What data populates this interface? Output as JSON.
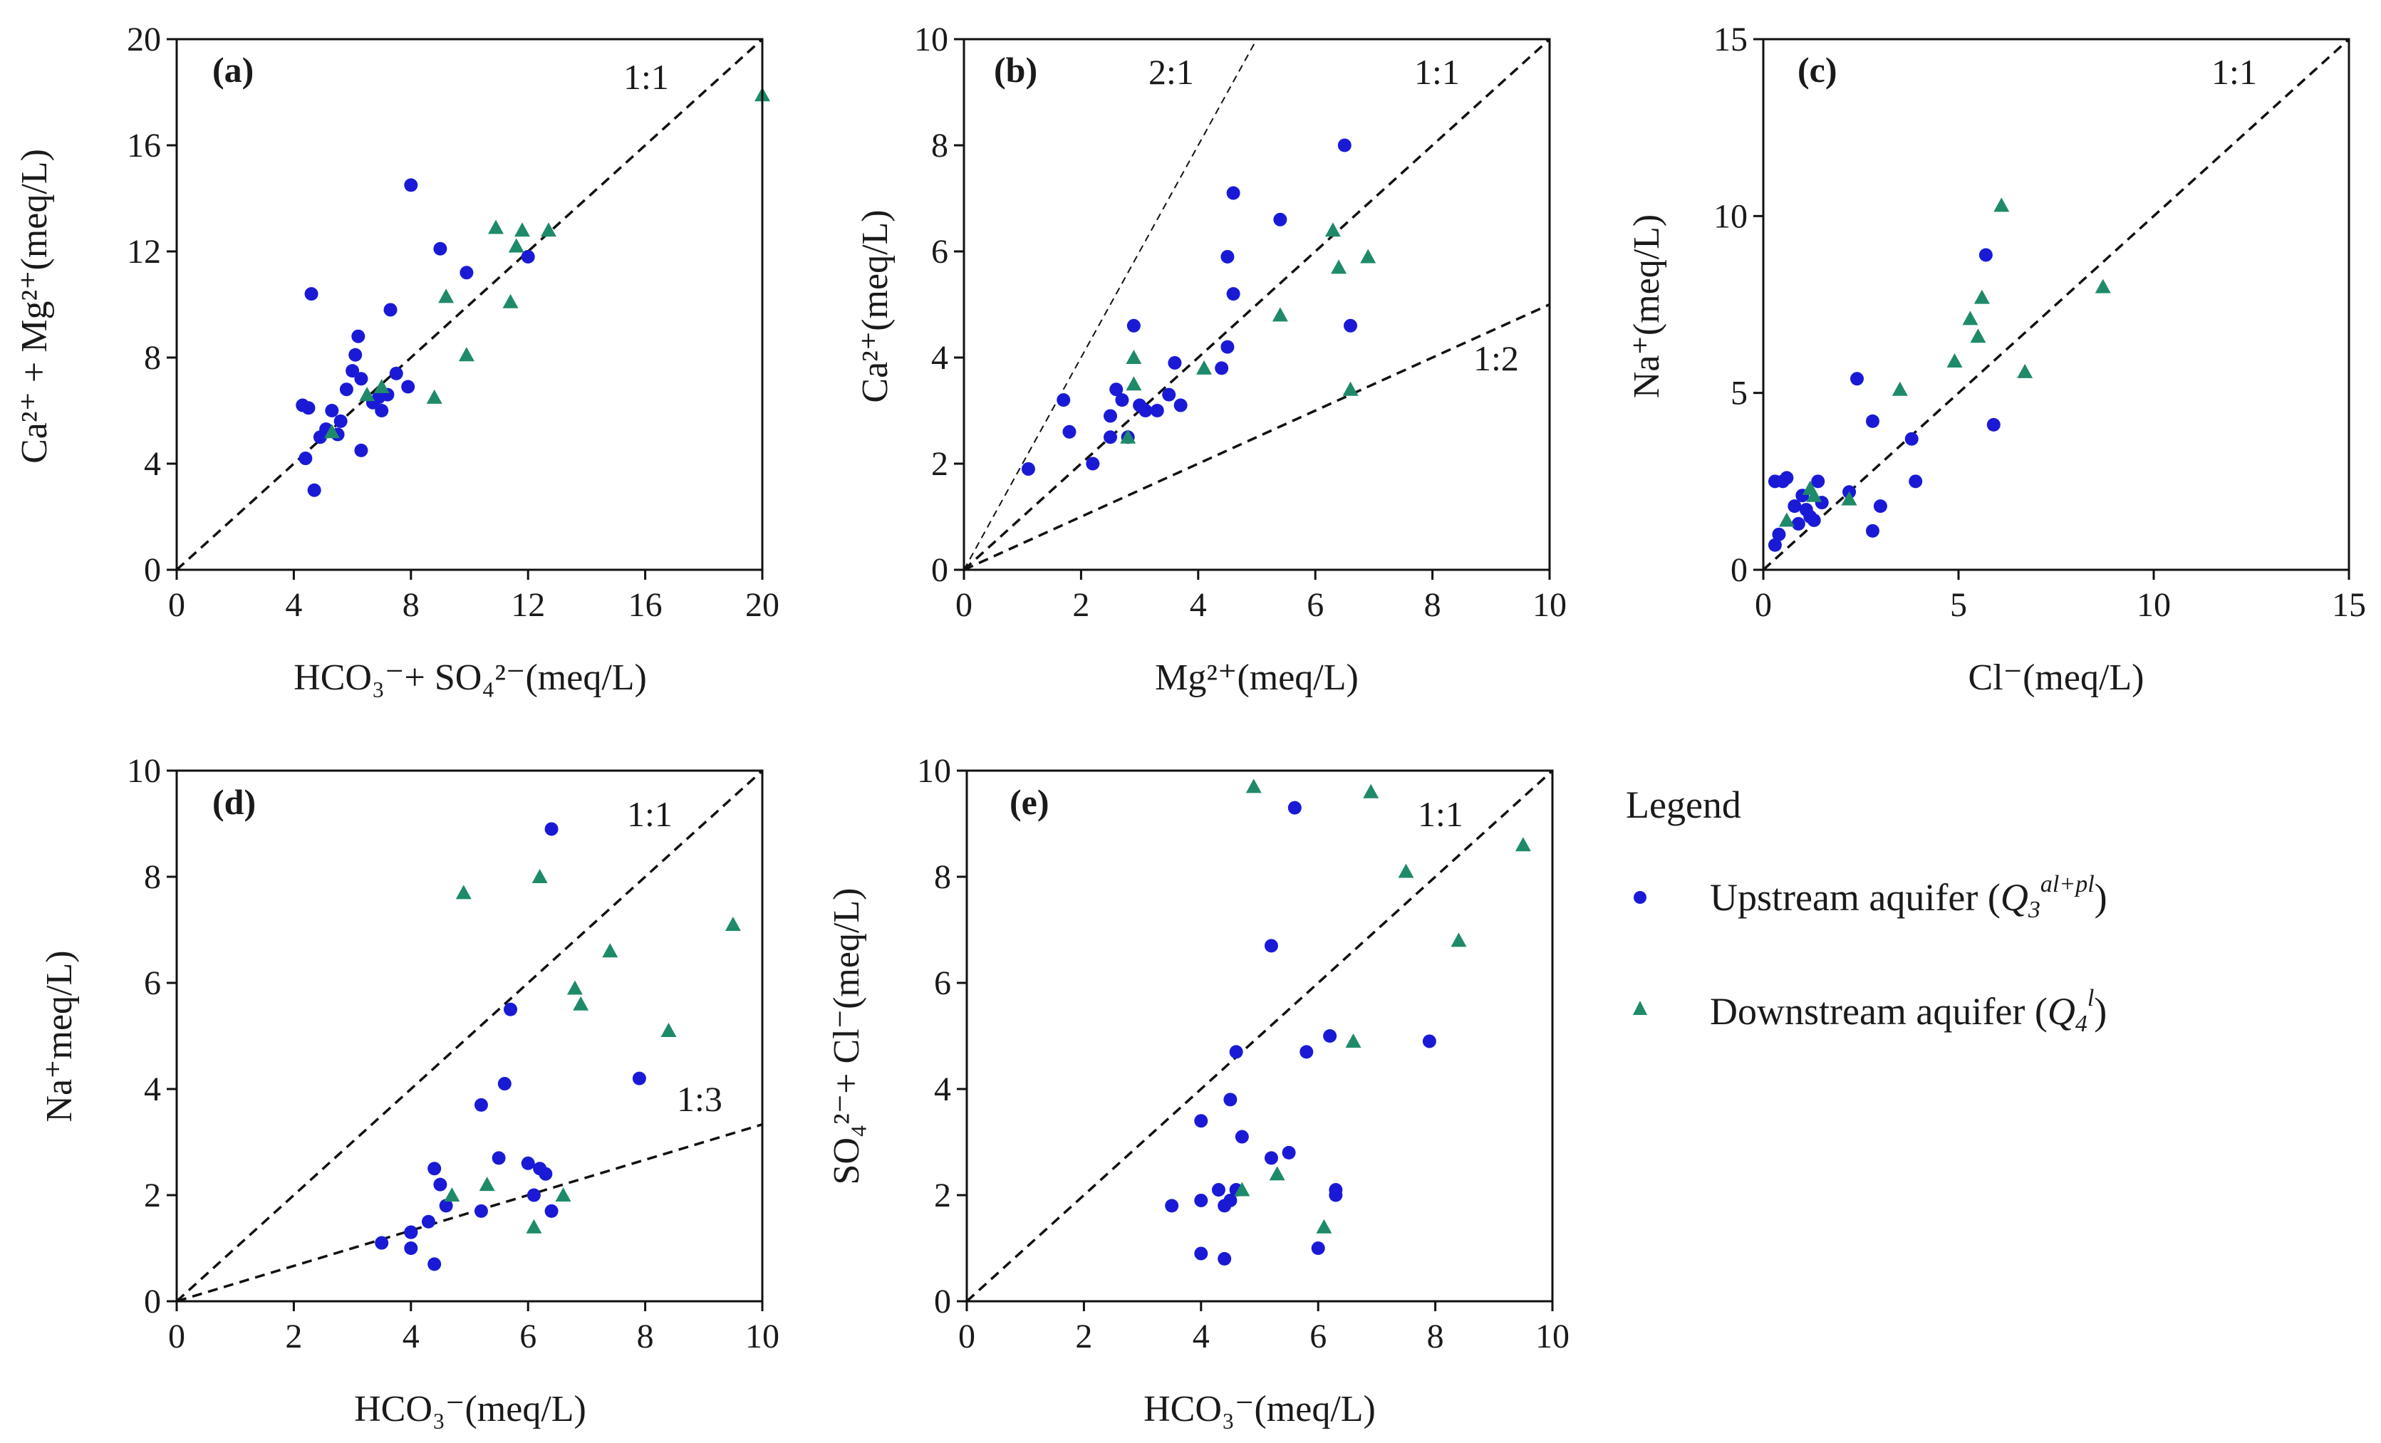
{
  "legend": {
    "title": "Legend",
    "items": [
      {
        "key": "up",
        "label_main": "Upstream aquifer (",
        "label_sym": "Q",
        "label_sub": "3",
        "label_sup": "al+pl",
        "label_end": ")",
        "color": "#1a1ad6",
        "marker": "circle"
      },
      {
        "key": "down",
        "label_main": "Downstream aquifer (",
        "label_sym": "Q",
        "label_sub": "4",
        "label_sup": "l",
        "label_end": ")",
        "color": "#1f8a6a",
        "marker": "triangle"
      }
    ]
  },
  "chart_data": [
    {
      "id": "a",
      "type": "scatter",
      "panel_label": "(a)",
      "xlabel": "HCO₃⁻+ SO₄²⁻(meq/L)",
      "ylabel": "Ca²⁺ + Mg²⁺(meq/L)",
      "xlim": [
        0,
        20
      ],
      "ylim": [
        0,
        20
      ],
      "xticks": [
        0,
        4,
        8,
        12,
        16,
        20
      ],
      "yticks": [
        0,
        4,
        8,
        12,
        16,
        20
      ],
      "ref_lines": [
        {
          "slope": 1,
          "label": "1:1",
          "style": "dashed"
        }
      ],
      "series": [
        {
          "name": "up",
          "x": [
            4.3,
            4.4,
            4.6,
            4.5,
            4.7,
            4.9,
            5.1,
            5.3,
            5.5,
            5.6,
            5.8,
            6.0,
            6.1,
            6.2,
            6.3,
            6.3,
            6.7,
            6.9,
            7.0,
            7.2,
            7.3,
            7.5,
            7.9,
            8.0,
            9.0,
            9.9,
            12.0
          ],
          "y": [
            6.2,
            4.2,
            10.4,
            6.1,
            3.0,
            5.0,
            5.3,
            6.0,
            5.1,
            5.6,
            6.8,
            7.5,
            8.1,
            8.8,
            4.5,
            7.2,
            6.3,
            6.5,
            6.0,
            6.6,
            9.8,
            7.4,
            6.9,
            14.5,
            12.1,
            11.2,
            11.8
          ]
        },
        {
          "name": "down",
          "x": [
            5.3,
            6.5,
            7.0,
            8.8,
            9.2,
            9.9,
            10.9,
            11.4,
            11.6,
            11.8,
            12.7,
            20.0
          ],
          "y": [
            5.2,
            6.6,
            6.9,
            6.5,
            10.3,
            8.1,
            12.9,
            10.1,
            12.2,
            12.8,
            12.8,
            17.9
          ]
        }
      ]
    },
    {
      "id": "b",
      "type": "scatter",
      "panel_label": "(b)",
      "xlabel": "Mg²⁺(meq/L)",
      "ylabel": "Ca²⁺(meq/L)",
      "xlim": [
        0,
        10
      ],
      "ylim": [
        0,
        10
      ],
      "xticks": [
        0,
        2,
        4,
        6,
        8,
        10
      ],
      "yticks": [
        0,
        2,
        4,
        6,
        8,
        10
      ],
      "ref_lines": [
        {
          "slope": 2,
          "label": "2:1",
          "style": "thin"
        },
        {
          "slope": 1,
          "label": "1:1",
          "style": "dashed"
        },
        {
          "slope": 0.5,
          "label": "1:2",
          "style": "dashed"
        }
      ],
      "series": [
        {
          "name": "up",
          "x": [
            1.1,
            1.7,
            1.8,
            2.2,
            2.5,
            2.5,
            2.6,
            2.7,
            2.8,
            2.9,
            3.0,
            3.1,
            3.3,
            3.5,
            3.6,
            3.7,
            4.4,
            4.5,
            4.5,
            4.6,
            4.6,
            5.4,
            6.5,
            6.6
          ],
          "y": [
            1.9,
            3.2,
            2.6,
            2.0,
            2.5,
            2.9,
            3.4,
            3.2,
            2.5,
            4.6,
            3.1,
            3.0,
            3.0,
            3.3,
            3.9,
            3.1,
            3.8,
            4.2,
            5.9,
            5.2,
            7.1,
            6.6,
            8.0,
            4.6
          ]
        },
        {
          "name": "down",
          "x": [
            2.8,
            2.9,
            2.9,
            4.1,
            5.4,
            6.3,
            6.4,
            6.6,
            6.9
          ],
          "y": [
            2.5,
            4.0,
            3.5,
            3.8,
            4.8,
            6.4,
            5.7,
            3.4,
            5.9
          ]
        }
      ]
    },
    {
      "id": "c",
      "type": "scatter",
      "panel_label": "(c)",
      "xlabel": "Cl⁻(meq/L)",
      "ylabel": "Na⁺(meq/L)",
      "xlim": [
        0,
        15
      ],
      "ylim": [
        0,
        15
      ],
      "xticks": [
        0,
        5,
        10,
        15
      ],
      "yticks": [
        0,
        5,
        10,
        15
      ],
      "ref_lines": [
        {
          "slope": 1,
          "label": "1:1",
          "style": "dashed"
        }
      ],
      "series": [
        {
          "name": "up",
          "x": [
            0.3,
            0.3,
            0.4,
            0.5,
            0.6,
            0.8,
            0.9,
            1.0,
            1.1,
            1.2,
            1.3,
            1.4,
            1.5,
            2.2,
            2.4,
            2.8,
            2.8,
            3.0,
            3.8,
            3.9,
            5.7,
            5.9
          ],
          "y": [
            2.5,
            0.7,
            1.0,
            2.5,
            2.6,
            1.8,
            1.3,
            2.1,
            1.7,
            1.5,
            1.4,
            2.5,
            1.9,
            2.2,
            5.4,
            4.2,
            1.1,
            1.8,
            3.7,
            2.5,
            8.9,
            4.1
          ]
        },
        {
          "name": "down",
          "x": [
            0.6,
            1.2,
            1.3,
            2.2,
            3.5,
            4.9,
            5.3,
            5.5,
            5.6,
            6.1,
            6.7,
            8.7
          ],
          "y": [
            1.4,
            2.3,
            2.1,
            2.0,
            5.1,
            5.9,
            7.1,
            6.6,
            7.7,
            10.3,
            5.6,
            8.0
          ]
        }
      ]
    },
    {
      "id": "d",
      "type": "scatter",
      "panel_label": "(d)",
      "xlabel": "HCO₃⁻(meq/L)",
      "ylabel": "Na⁺meq/L)",
      "xlim": [
        0,
        10
      ],
      "ylim": [
        0,
        10
      ],
      "xticks": [
        0,
        2,
        4,
        6,
        8,
        10
      ],
      "yticks": [
        0,
        2,
        4,
        6,
        8,
        10
      ],
      "ref_lines": [
        {
          "slope": 1,
          "label": "1:1",
          "style": "dashed"
        },
        {
          "slope": 0.3333,
          "label": "1:3",
          "style": "dashed"
        }
      ],
      "series": [
        {
          "name": "up",
          "x": [
            3.5,
            4.0,
            4.0,
            4.0,
            4.3,
            4.4,
            4.4,
            4.5,
            4.6,
            5.2,
            5.2,
            5.5,
            5.6,
            5.7,
            6.0,
            6.1,
            6.2,
            6.3,
            6.4,
            6.4,
            7.9
          ],
          "y": [
            1.1,
            1.3,
            1.0,
            1.3,
            1.5,
            2.5,
            0.7,
            2.2,
            1.8,
            3.7,
            1.7,
            2.7,
            4.1,
            5.5,
            2.6,
            2.0,
            2.5,
            2.4,
            1.7,
            8.9,
            4.2
          ]
        },
        {
          "name": "down",
          "x": [
            4.7,
            4.9,
            5.3,
            6.1,
            6.2,
            6.6,
            6.8,
            6.9,
            7.4,
            8.4,
            9.5
          ],
          "y": [
            2.0,
            7.7,
            2.2,
            1.4,
            8.0,
            2.0,
            5.9,
            5.6,
            6.6,
            5.1,
            7.1
          ]
        }
      ]
    },
    {
      "id": "e",
      "type": "scatter",
      "panel_label": "(e)",
      "xlabel": "HCO₃⁻(meq/L)",
      "ylabel": "SO₄²⁻+ Cl⁻(meq/L)",
      "xlim": [
        0,
        10
      ],
      "ylim": [
        0,
        10
      ],
      "xticks": [
        0,
        2,
        4,
        6,
        8,
        10
      ],
      "yticks": [
        0,
        2,
        4,
        6,
        8,
        10
      ],
      "ref_lines": [
        {
          "slope": 1,
          "label": "1:1",
          "style": "dashed"
        }
      ],
      "series": [
        {
          "name": "up",
          "x": [
            3.5,
            4.0,
            4.0,
            4.0,
            4.3,
            4.4,
            4.4,
            4.5,
            4.5,
            4.6,
            4.6,
            4.7,
            5.2,
            5.2,
            5.5,
            5.6,
            5.8,
            6.0,
            6.2,
            6.3,
            6.3,
            7.9
          ],
          "y": [
            1.8,
            3.4,
            1.9,
            0.9,
            2.1,
            1.8,
            0.8,
            3.8,
            1.9,
            2.1,
            4.7,
            3.1,
            2.7,
            6.7,
            2.8,
            9.3,
            4.7,
            1.0,
            5.0,
            2.0,
            2.1,
            4.9
          ]
        },
        {
          "name": "down",
          "x": [
            4.7,
            4.9,
            5.3,
            6.1,
            6.6,
            6.9,
            7.5,
            8.4,
            9.5
          ],
          "y": [
            2.1,
            9.7,
            2.4,
            1.4,
            4.9,
            9.6,
            8.1,
            6.8,
            8.6
          ]
        }
      ]
    }
  ]
}
